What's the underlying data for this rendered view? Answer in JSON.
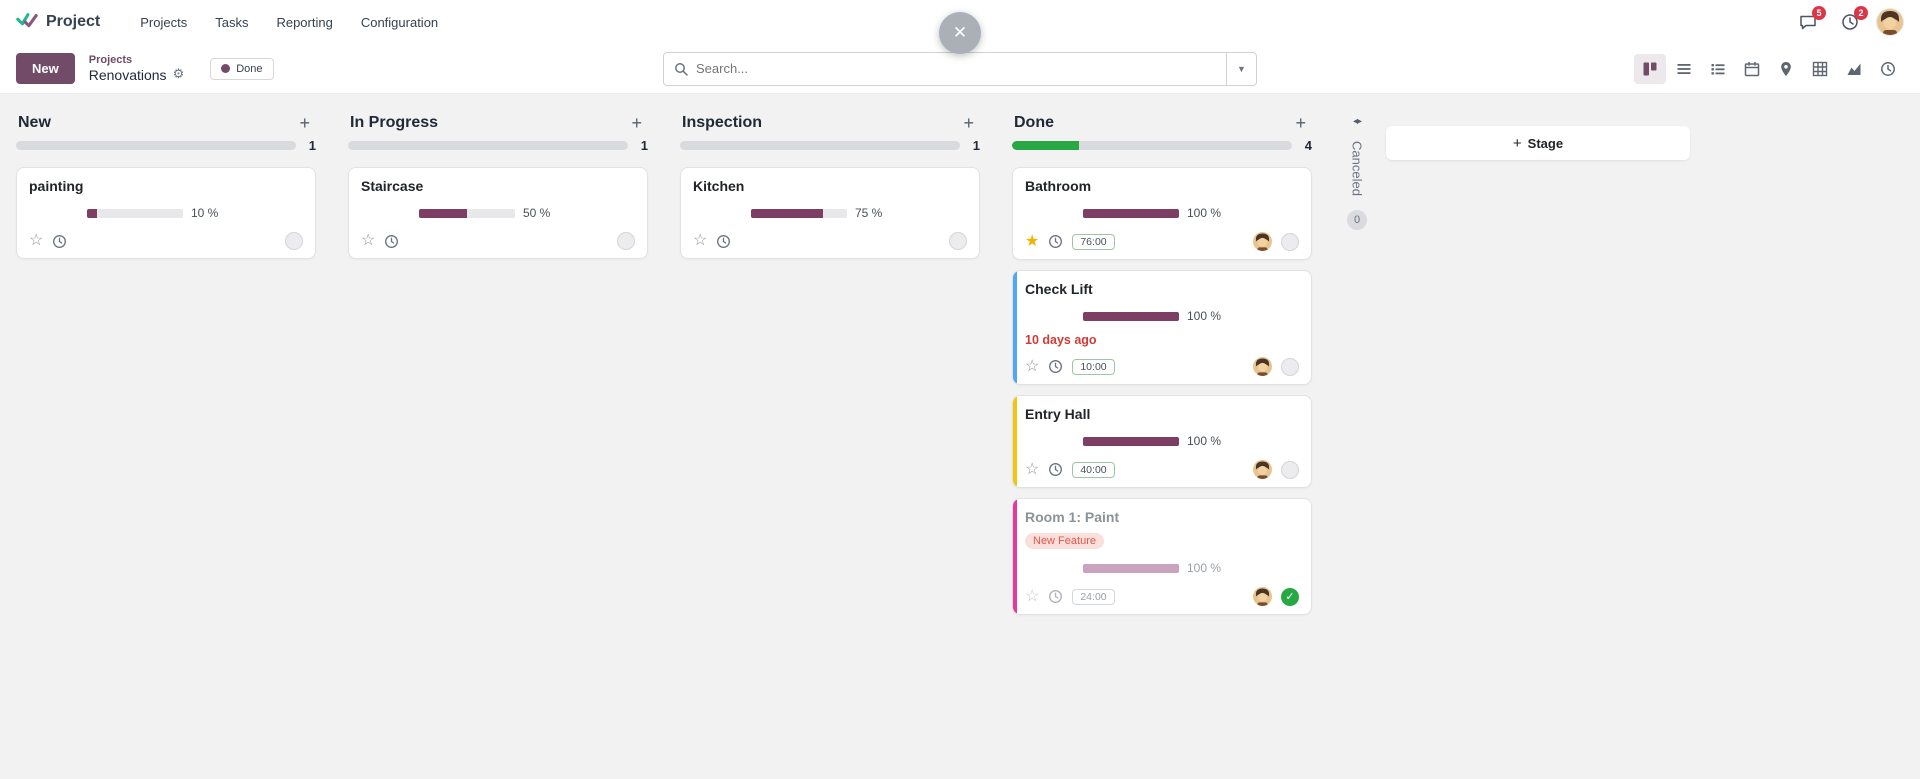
{
  "navbar": {
    "app_name": "Project",
    "menu_items": [
      "Projects",
      "Tasks",
      "Reporting",
      "Configuration"
    ],
    "messages_badge": "5",
    "activities_badge": "2"
  },
  "control_panel": {
    "new_button_label": "New",
    "breadcrumb_parent": "Projects",
    "breadcrumb_current": "Renovations",
    "facet_label": "Done",
    "search_placeholder": "Search..."
  },
  "view_switcher": [
    "kanban-icon",
    "list-icon",
    "list-detail-icon",
    "calendar-icon",
    "map-icon",
    "pivot-icon",
    "graph-icon",
    "activity-icon"
  ],
  "board": {
    "add_stage_label": "Stage",
    "collapsed_column": {
      "title": "Canceled",
      "count": "0"
    },
    "columns": [
      {
        "title": "New",
        "count": "1",
        "done_pct": 0,
        "cards": [
          {
            "title": "painting",
            "progress_pct": 10,
            "progress_label": "10 %"
          }
        ]
      },
      {
        "title": "In Progress",
        "count": "1",
        "done_pct": 0,
        "cards": [
          {
            "title": "Staircase",
            "progress_pct": 50,
            "progress_label": "50 %"
          }
        ]
      },
      {
        "title": "Inspection",
        "count": "1",
        "done_pct": 0,
        "cards": [
          {
            "title": "Kitchen",
            "progress_pct": 75,
            "progress_label": "75 %"
          }
        ]
      },
      {
        "title": "Done",
        "count": "4",
        "done_pct": 24,
        "cards": [
          {
            "title": "Bathroom",
            "progress_pct": 100,
            "progress_label": "100 %",
            "hours": "76:00",
            "starred": true
          },
          {
            "title": "Check Lift",
            "progress_pct": 100,
            "progress_label": "100 %",
            "hours": "10:00",
            "deadline": "10 days ago",
            "accent": "#4EA7F2"
          },
          {
            "title": "Entry Hall",
            "progress_pct": 100,
            "progress_label": "100 %",
            "hours": "40:00",
            "accent": "#F2C511"
          },
          {
            "title": "Room 1: Paint",
            "progress_pct": 100,
            "progress_label": "100 %",
            "hours": "24:00",
            "tag": "New Feature",
            "accent": "#E5399E",
            "muted": true,
            "done_check": true
          }
        ]
      }
    ]
  },
  "colors": {
    "primary": "#714B67",
    "progress_fill": "#7C3F63",
    "column_done_green": "#28a745",
    "deadline_red": "#cf3c35",
    "star_gold": "#f0b400"
  }
}
